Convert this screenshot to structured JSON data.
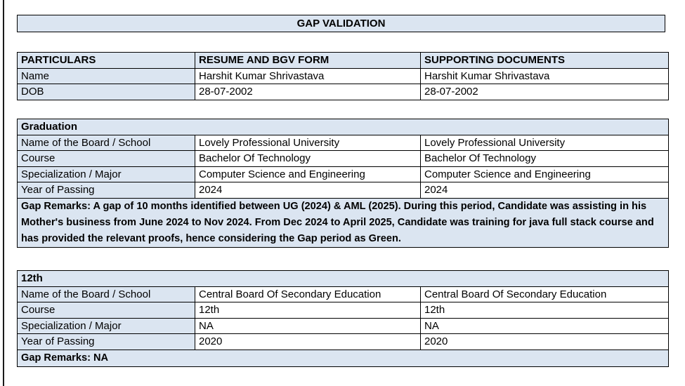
{
  "page": {
    "title": "GAP VALIDATION"
  },
  "colors": {
    "cell_fill": "#dbe5f1",
    "border": "#000000"
  },
  "identity_table": {
    "headers": [
      "PARTICULARS",
      "RESUME AND BGV FORM",
      "SUPPORTING DOCUMENTS"
    ],
    "rows": [
      {
        "label": "Name",
        "resume": "Harshit Kumar Shrivastava",
        "supporting": "Harshit Kumar Shrivastava"
      },
      {
        "label": "DOB",
        "resume": "28-07-2002",
        "supporting": "28-07-2002"
      }
    ]
  },
  "sections": [
    {
      "title": "Graduation",
      "rows": [
        {
          "label": "Name of the Board / School",
          "resume": "Lovely Professional University",
          "supporting": "Lovely Professional University"
        },
        {
          "label": "Course",
          "resume": "Bachelor Of Technology",
          "supporting": "Bachelor Of Technology"
        },
        {
          "label": "Specialization / Major",
          "resume": "Computer Science and Engineering",
          "supporting": "Computer Science and Engineering"
        },
        {
          "label": "Year of Passing",
          "resume": "2024",
          "supporting": "2024"
        }
      ],
      "gap_remarks": "Gap Remarks: A gap of 10 months identified between UG (2024) & AML (2025). During this period, Candidate was assisting in his Mother's business from June 2024 to Nov 2024. From Dec 2024 to April 2025, Candidate was training for java full stack course and has provided the relevant proofs, hence considering the Gap period as Green."
    },
    {
      "title": "12th",
      "rows": [
        {
          "label": "Name of the Board / School",
          "resume": "Central Board Of Secondary Education",
          "supporting": "Central Board Of Secondary Education"
        },
        {
          "label": "Course",
          "resume": "12th",
          "supporting": "12th"
        },
        {
          "label": "Specialization / Major",
          "resume": "NA",
          "supporting": "NA"
        },
        {
          "label": "Year of Passing",
          "resume": "2020",
          "supporting": "2020"
        }
      ],
      "gap_remarks": "Gap Remarks: NA"
    }
  ]
}
